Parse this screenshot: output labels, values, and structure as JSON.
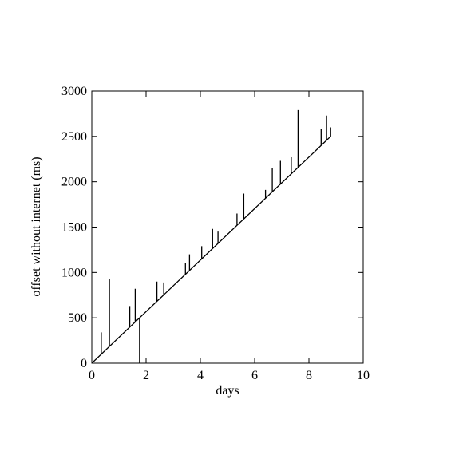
{
  "chart_data": {
    "type": "line",
    "xlabel": "days",
    "ylabel": "offset without internet (ms)",
    "x": [
      0,
      0.35,
      0.35,
      0.35,
      0.65,
      0.65,
      0.65,
      1.4,
      1.4,
      1.4,
      1.6,
      1.6,
      1.6,
      1.76,
      1.76,
      1.76,
      2.4,
      2.4,
      2.4,
      2.65,
      2.65,
      2.65,
      3.45,
      3.45,
      3.45,
      3.6,
      3.6,
      3.6,
      4.05,
      4.05,
      4.05,
      4.45,
      4.45,
      4.45,
      4.65,
      4.65,
      4.65,
      5.35,
      5.35,
      5.35,
      5.6,
      5.6,
      5.6,
      6.4,
      6.4,
      6.4,
      6.65,
      6.65,
      6.65,
      6.95,
      6.95,
      6.95,
      7.35,
      7.35,
      7.35,
      7.6,
      7.6,
      7.6,
      8.45,
      8.45,
      8.45,
      8.65,
      8.65,
      8.65,
      8.8,
      8.8,
      8.8
    ],
    "series": [
      {
        "color": "#000000",
        "values": [
          0,
          99,
          340,
          99,
          185,
          930,
          185,
          398,
          630,
          398,
          454,
          820,
          454,
          500,
          0,
          500,
          682,
          900,
          682,
          753,
          890,
          753,
          980,
          1100,
          980,
          1022,
          1200,
          1022,
          1150,
          1290,
          1150,
          1264,
          1480,
          1264,
          1320,
          1450,
          1320,
          1520,
          1650,
          1520,
          1590,
          1870,
          1590,
          1818,
          1910,
          1818,
          1889,
          2150,
          1889,
          1974,
          2230,
          1974,
          2087,
          2270,
          2087,
          2158,
          2790,
          2158,
          2400,
          2580,
          2400,
          2457,
          2730,
          2457,
          2500,
          2600,
          2520
        ]
      }
    ],
    "xlim": [
      0,
      10
    ],
    "xticks": [
      0,
      2,
      4,
      6,
      8,
      10
    ],
    "ylim": [
      0,
      3000
    ],
    "yticks": [
      0,
      500,
      1000,
      1500,
      2000,
      2500,
      3000
    ]
  }
}
